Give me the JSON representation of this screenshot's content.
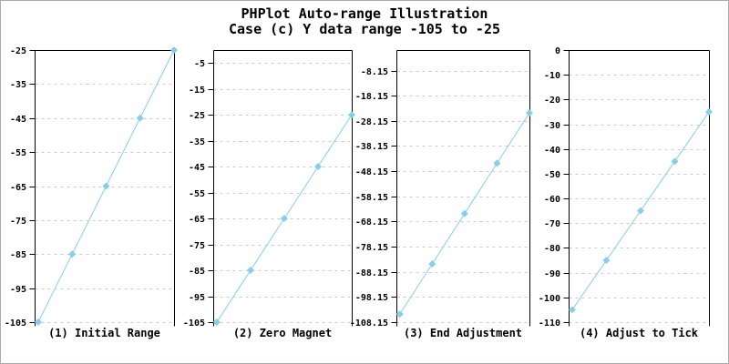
{
  "title": {
    "line1": "PHPlot Auto-range Illustration",
    "line2": "Case (c) Y data range -105 to -25"
  },
  "colors": {
    "series_line": "#87CEEB",
    "series_marker": "#87CEEB",
    "grid": "#CCCCCC",
    "axis": "#000000",
    "text": "#000000",
    "background": "#FFFFFF",
    "image_border": "#ABABAB"
  },
  "chart_data": [
    {
      "type": "line",
      "title": "(1) Initial Range",
      "x": [
        0,
        1,
        2,
        3,
        4
      ],
      "values": [
        -105,
        -85,
        -65,
        -45,
        -25
      ],
      "xlim": [
        -0.105,
        4
      ],
      "ylim": [
        -105,
        -25
      ],
      "yticks": [
        -25,
        -35,
        -45,
        -55,
        -65,
        -75,
        -85,
        -95,
        -105
      ],
      "grid": "horizontal-dashed",
      "marker": "diamond",
      "legend": "none"
    },
    {
      "type": "line",
      "title": "(2) Zero Magnet",
      "x": [
        0,
        1,
        2,
        3,
        4
      ],
      "values": [
        -105,
        -85,
        -65,
        -45,
        -25
      ],
      "xlim": [
        -0.105,
        4
      ],
      "ylim": [
        -105,
        0
      ],
      "yticks": [
        -5,
        -15,
        -25,
        -35,
        -45,
        -55,
        -65,
        -75,
        -85,
        -95,
        -105
      ],
      "grid": "horizontal-dashed",
      "marker": "diamond",
      "legend": "none"
    },
    {
      "type": "line",
      "title": "(3) End Adjustment",
      "x": [
        0,
        1,
        2,
        3,
        4
      ],
      "values": [
        -105,
        -85,
        -65,
        -45,
        -25
      ],
      "xlim": [
        -0.105,
        4
      ],
      "ylim": [
        -108.15,
        0
      ],
      "yticks": [
        -8.15,
        -18.15,
        -28.15,
        -38.15,
        -48.15,
        -58.15,
        -68.15,
        -78.15,
        -88.15,
        -98.15,
        -108.15
      ],
      "grid": "horizontal-dashed",
      "marker": "diamond",
      "legend": "none"
    },
    {
      "type": "line",
      "title": "(4) Adjust to Tick",
      "x": [
        0,
        1,
        2,
        3,
        4
      ],
      "values": [
        -105,
        -85,
        -65,
        -45,
        -25
      ],
      "xlim": [
        -0.105,
        4
      ],
      "ylim": [
        -110,
        0
      ],
      "yticks": [
        0,
        -10,
        -20,
        -30,
        -40,
        -50,
        -60,
        -70,
        -80,
        -90,
        -100,
        -110
      ],
      "grid": "horizontal-dashed",
      "marker": "diamond",
      "legend": "none"
    }
  ]
}
